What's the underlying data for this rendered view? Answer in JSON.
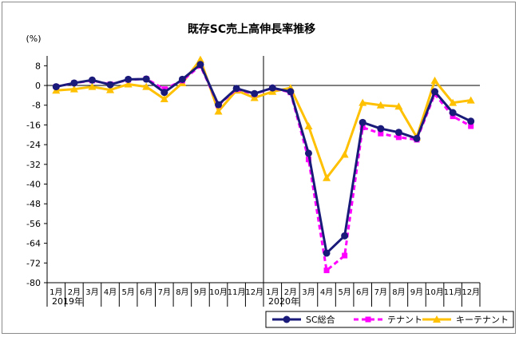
{
  "chart_data": {
    "type": "line",
    "title": "既存SC売上高伸長率推移",
    "ylabel": "(%)",
    "ylim": [
      -80,
      12
    ],
    "yticks": [
      8,
      0,
      -8,
      -16,
      -24,
      -32,
      -40,
      -48,
      -56,
      -64,
      -72,
      -80
    ],
    "categories": [
      "1月",
      "2月",
      "3月",
      "4月",
      "5月",
      "6月",
      "7月",
      "8月",
      "9月",
      "10月",
      "11月",
      "12月",
      "1月",
      "2月",
      "3月",
      "4月",
      "5月",
      "6月",
      "7月",
      "8月",
      "9月",
      "10月",
      "11月",
      "12月"
    ],
    "year_labels": [
      {
        "label": "2019年",
        "index": 0
      },
      {
        "label": "2020年",
        "index": 12
      }
    ],
    "divider_after_index": 11,
    "series": [
      {
        "name": "SC総合",
        "color": "#1a1a7a",
        "dash": "",
        "marker": "circle",
        "values": [
          -0.5,
          1.0,
          2.2,
          0.3,
          2.5,
          2.6,
          -2.8,
          2.5,
          8.5,
          -7.8,
          -1.2,
          -3.3,
          -1.0,
          -2.5,
          -27.5,
          -68.0,
          -61.0,
          -15.0,
          -17.5,
          -19.0,
          -21.5,
          -2.5,
          -11.0,
          -14.5
        ]
      },
      {
        "name": "テナント",
        "color": "#ff00ff",
        "dash": "6,4",
        "marker": "square",
        "values": [
          -0.5,
          1.0,
          2.0,
          0.5,
          2.3,
          2.7,
          -1.5,
          2.0,
          8.0,
          -8.0,
          -1.5,
          -3.5,
          -1.0,
          -2.8,
          -30.0,
          -75.0,
          -69.0,
          -17.0,
          -19.5,
          -21.0,
          -22.0,
          -3.5,
          -12.5,
          -16.5
        ]
      },
      {
        "name": "キーテナント",
        "color": "#ffc000",
        "dash": "",
        "marker": "triangle",
        "values": [
          -2.0,
          -1.5,
          -0.5,
          -1.8,
          0.5,
          -0.5,
          -5.5,
          1.0,
          10.5,
          -10.5,
          -2.0,
          -5.0,
          -2.5,
          -1.0,
          -16.5,
          -37.5,
          -28.0,
          -7.0,
          -8.0,
          -8.5,
          -21.0,
          2.0,
          -7.0,
          -6.0
        ]
      }
    ],
    "grid": false,
    "legend": "bottom-right"
  }
}
